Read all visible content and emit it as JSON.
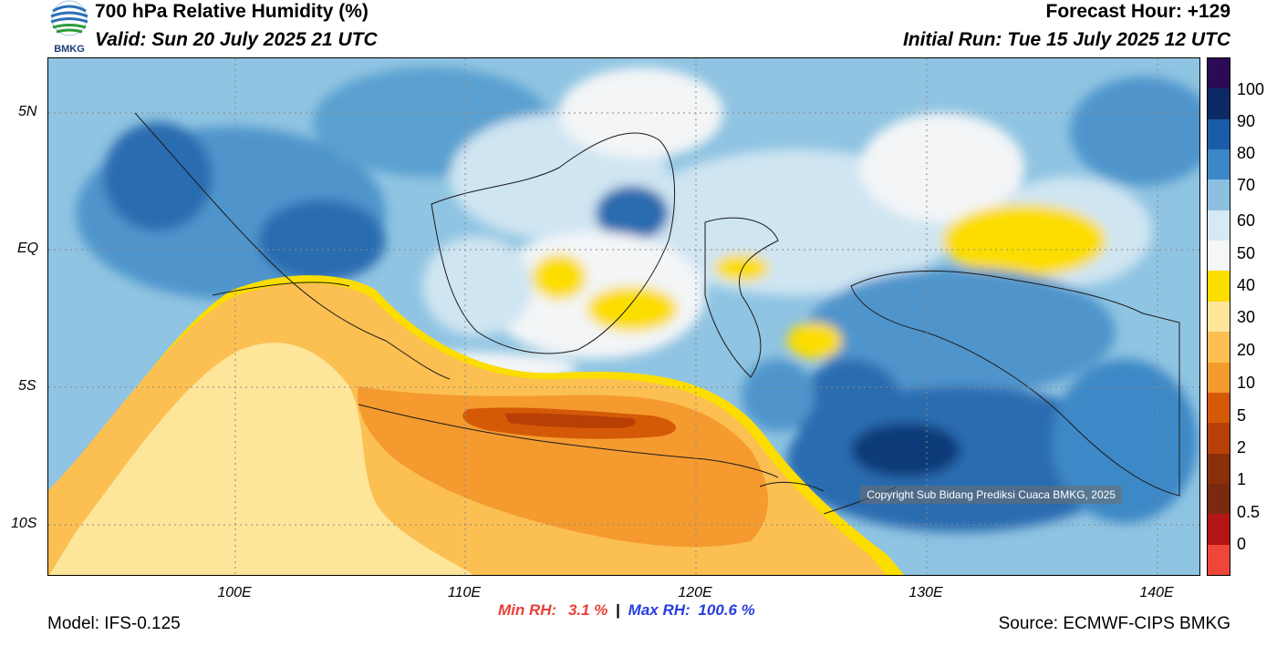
{
  "header": {
    "title": "700 hPa Relative Humidity (%)",
    "valid": "Valid: Sun 20 July 2025 21 UTC",
    "forecast_hour": "Forecast Hour: +129",
    "initial_run": "Initial Run: Tue 15 July 2025 12 UTC"
  },
  "logo": {
    "text": "BMKG"
  },
  "map": {
    "lat_labels": [
      "5N",
      "EQ",
      "5S",
      "10S"
    ],
    "lon_labels": [
      "100E",
      "110E",
      "120E",
      "130E",
      "140E"
    ],
    "copyright": "Copyright Sub Bidang Prediksi Cuaca BMKG, 2025"
  },
  "colorbar": {
    "labels": [
      "100",
      "90",
      "80",
      "70",
      "60",
      "50",
      "40",
      "30",
      "20",
      "10",
      "5",
      "2",
      "1",
      "0.5",
      "0"
    ],
    "colors": [
      "#2b0a57",
      "#0b2a64",
      "#1a5ca8",
      "#3c88c6",
      "#8dc0e0",
      "#d7e9f4",
      "#f5f6f7",
      "#fbdd00",
      "#fde59a",
      "#fbbf52",
      "#f59a2e",
      "#d45a08",
      "#b84006",
      "#8a2f0a",
      "#7a2a10",
      "#b61515",
      "#f0463a"
    ]
  },
  "stats": {
    "min_label": "Min RH:",
    "min_value": "3.1 %",
    "separator": "|",
    "max_label": "Max RH:",
    "max_value": "100.6 %"
  },
  "footer": {
    "model": "Model: IFS-0.125",
    "source": "Source: ECMWF-CIPS BMKG"
  }
}
